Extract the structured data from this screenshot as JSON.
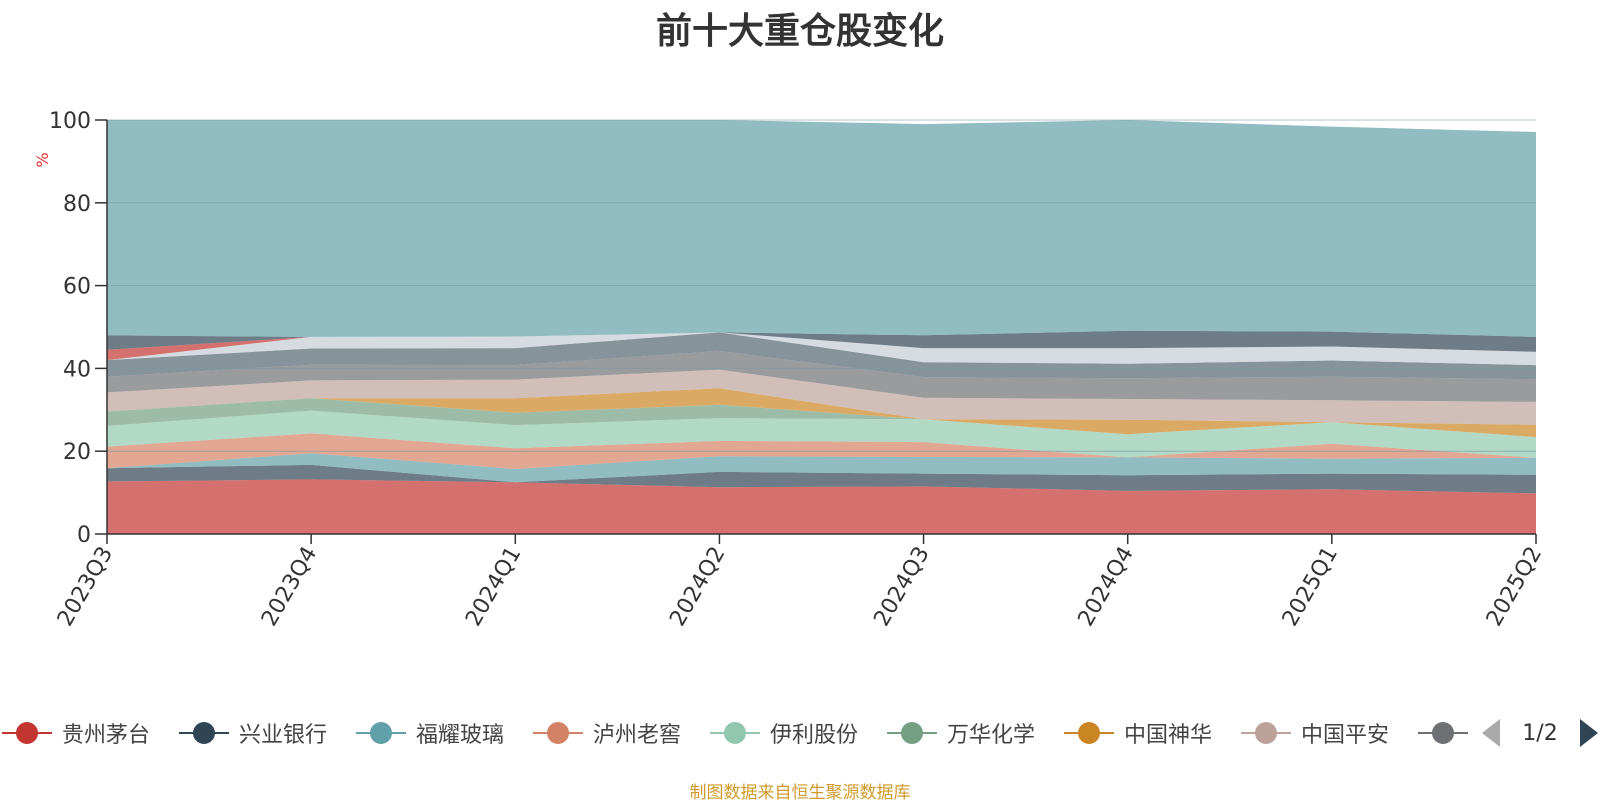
{
  "title": "前十大重仓股变化",
  "source_note": "制图数据来自恒生聚源数据库",
  "legend_page": "1/2",
  "chart_data": {
    "type": "area",
    "stacked": true,
    "title": "前十大重仓股变化",
    "ylabel": "%",
    "ylim": [
      0,
      100
    ],
    "yticks": [
      "0",
      "20",
      "40",
      "60",
      "80",
      "100"
    ],
    "categories": [
      "2023Q3",
      "2023Q4",
      "2024Q1",
      "2024Q2",
      "2024Q3",
      "2024Q4",
      "2025Q1",
      "2025Q2"
    ],
    "grid": true,
    "legend_position": "bottom",
    "series": [
      {
        "name": "贵州茅台",
        "color": "#c23531",
        "values": [
          12.7,
          13.2,
          12.5,
          11.3,
          11.5,
          10.4,
          10.8,
          9.8
        ]
      },
      {
        "name": "兴业银行",
        "color": "#2f4554",
        "values": [
          3.2,
          3.5,
          0,
          3.7,
          3.1,
          3.8,
          3.8,
          4.5
        ]
      },
      {
        "name": "福耀玻璃",
        "color": "#61a0a8",
        "values": [
          0,
          2.8,
          3.2,
          3.8,
          4.0,
          4.3,
          3.6,
          4.1
        ]
      },
      {
        "name": "泸州老窖",
        "color": "#d48265",
        "values": [
          5.2,
          4.8,
          5.0,
          3.7,
          3.6,
          0,
          3.6,
          0
        ]
      },
      {
        "name": "伊利股份",
        "color": "#91c7ae",
        "values": [
          5.0,
          5.5,
          5.6,
          5.5,
          5.5,
          5.6,
          5.2,
          5.0
        ]
      },
      {
        "name": "万华化学",
        "color": "#749f83",
        "values": [
          3.5,
          3.0,
          3.0,
          3.2,
          0,
          0,
          0,
          0
        ]
      },
      {
        "name": "中国神华",
        "color": "#ca8622",
        "values": [
          0,
          0,
          3.5,
          4.0,
          0,
          3.5,
          0,
          3.0
        ]
      },
      {
        "name": "中国平安",
        "color": "#bda29a",
        "values": [
          4.6,
          4.3,
          4.5,
          4.5,
          5.2,
          5.0,
          5.3,
          5.5
        ]
      },
      {
        "name": "",
        "color": "#6e7074",
        "values": [
          3.8,
          3.8,
          3.5,
          4.5,
          5.0,
          5.0,
          5.7,
          5.5
        ]
      },
      {
        "name": "",
        "color": "#546570",
        "values": [
          4.0,
          3.9,
          4.1,
          4.5,
          3.6,
          3.5,
          3.9,
          3.4
        ]
      },
      {
        "name": "",
        "color": "#c4ccd3",
        "values": [
          0,
          2.8,
          2.8,
          0,
          3.4,
          3.8,
          3.4,
          3.2
        ]
      },
      {
        "name": "",
        "color": "#c23531",
        "values": [
          2.5,
          0,
          0,
          0,
          0,
          0,
          0,
          0
        ]
      },
      {
        "name": "",
        "color": "#2f4554",
        "values": [
          3.5,
          0,
          0,
          0,
          3.1,
          4.2,
          3.6,
          3.6
        ]
      },
      {
        "name": "",
        "color": "#61a0a8",
        "values": [
          52.0,
          52.4,
          52.3,
          51.3,
          51.0,
          50.9,
          49.5,
          49.5
        ]
      }
    ]
  }
}
